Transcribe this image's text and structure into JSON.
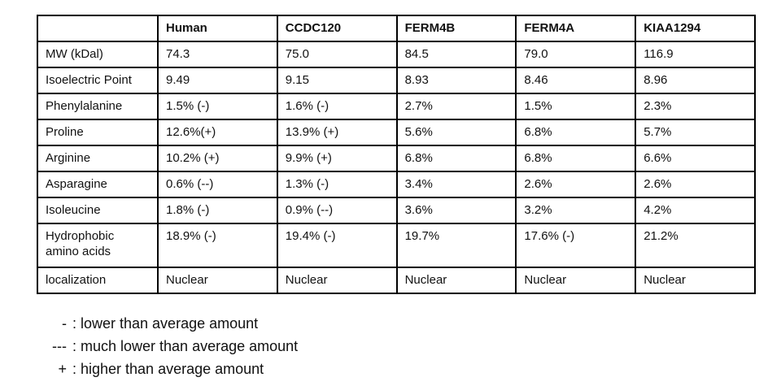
{
  "chart_data": {
    "type": "table",
    "columns": [
      "",
      "Human",
      "CCDC120",
      "FERM4B",
      "FERM4A",
      "KIAA1294"
    ],
    "rows": [
      {
        "label": "MW (kDal)",
        "values": [
          "74.3",
          "75.0",
          "84.5",
          "79.0",
          "116.9"
        ]
      },
      {
        "label": "Isoelectric Point",
        "values": [
          "9.49",
          "9.15",
          "8.93",
          "8.46",
          "8.96"
        ]
      },
      {
        "label": "Phenylalanine",
        "values": [
          "1.5% (-)",
          "1.6% (-)",
          "2.7%",
          "1.5%",
          "2.3%"
        ]
      },
      {
        "label": "Proline",
        "values": [
          "12.6%(+)",
          "13.9% (+)",
          "5.6%",
          "6.8%",
          "5.7%"
        ]
      },
      {
        "label": "Arginine",
        "values": [
          "10.2% (+)",
          "9.9% (+)",
          "6.8%",
          "6.8%",
          "6.6%"
        ]
      },
      {
        "label": "Asparagine",
        "values": [
          "0.6% (--)",
          "1.3% (-)",
          "3.4%",
          "2.6%",
          "2.6%"
        ]
      },
      {
        "label": "Isoleucine",
        "values": [
          "1.8% (-)",
          "0.9% (--)",
          "3.6%",
          "3.2%",
          "4.2%"
        ]
      },
      {
        "label": "Hydrophobic amino acids",
        "values": [
          "18.9% (-)",
          "19.4% (-)",
          "19.7%",
          "17.6% (-)",
          "21.2%"
        ]
      },
      {
        "label": "localization",
        "values": [
          "Nuclear",
          "Nuclear",
          "Nuclear",
          "Nuclear",
          "Nuclear"
        ]
      }
    ],
    "text_color": "#111111",
    "border_color": "#000000"
  },
  "legend": [
    {
      "symbol": "-",
      "text": ": lower than average amount"
    },
    {
      "symbol": "---",
      "text": ": much lower than average amount"
    },
    {
      "symbol": "+",
      "text": ": higher than average amount"
    }
  ]
}
